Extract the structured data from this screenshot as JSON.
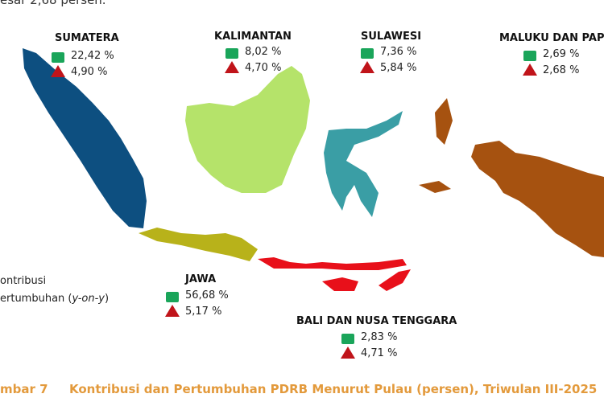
{
  "header": {
    "text": "esar 2,68 persen."
  },
  "regions": [
    {
      "name": "SUMATERA",
      "contribution": "22,42 %",
      "growth": "4,90 %"
    },
    {
      "name": "KALIMANTAN",
      "contribution": "8,02 %",
      "growth": "4,70 %"
    },
    {
      "name": "SULAWESI",
      "contribution": "7,36 %",
      "growth": "5,84 %"
    },
    {
      "name": "MALUKU DAN PAPUA",
      "contribution": "2,69 %",
      "growth": "2,68 %"
    },
    {
      "name": "JAWA",
      "contribution": "56,68 %",
      "growth": "5,17 %"
    },
    {
      "name": "BALI DAN NUSA TENGGARA",
      "contribution": "2,83 %",
      "growth": "4,71 %"
    }
  ],
  "legend": {
    "contribution": "ontribusi",
    "growth_prefix": "ertumbuhan (",
    "growth_italic": "y-on-y",
    "growth_suffix": ")"
  },
  "caption": {
    "number": "mbar 7",
    "text": "Kontribusi dan Pertumbuhan PDRB Menurut Pulau (persen), Triwulan III-2025"
  }
}
